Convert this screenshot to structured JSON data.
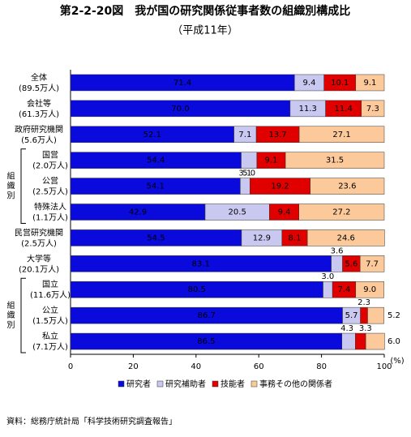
{
  "chart_data": {
    "type": "stacked-bar-horizontal",
    "title": "第2-2-20図　我が国の研究関係従事者数の組織別構成比",
    "subtitle": "（平成11年）",
    "categories": [
      "全体",
      "会社等",
      "政府研究機関",
      "国営",
      "公営",
      "特殊法人",
      "民営研究機関",
      "大学等",
      "国立",
      "公立",
      "私立"
    ],
    "category_counts": [
      "(89.5万人)",
      "(61.3万人)",
      "(5.6万人)",
      "(2.0万人)",
      "(2.5万人)",
      "(1.1万人)",
      "(2.5万人)",
      "(20.1万人)",
      "(11.6万人)",
      "(1.5万人)",
      "(7.1万人)"
    ],
    "groups": [
      {
        "label": "組織別",
        "rows": [
          3,
          5
        ]
      },
      {
        "label": "組織別",
        "rows": [
          8,
          10
        ]
      }
    ],
    "series": [
      {
        "name": "研究者",
        "color": "#0a0adc",
        "values": [
          71.4,
          70.0,
          52.1,
          54.4,
          54.1,
          42.9,
          54.5,
          83.1,
          80.5,
          86.7,
          86.5
        ],
        "value_labels": [
          "71.4",
          "70.0",
          "52.1",
          "54.4",
          "54.1",
          "42.9",
          "54.5",
          "83.1",
          "80.5",
          "86.7",
          "86.5"
        ]
      },
      {
        "name": "研究補助者",
        "color": "#c8c8f0",
        "values": [
          9.4,
          11.3,
          7.1,
          5.0,
          3.1,
          20.5,
          12.9,
          3.6,
          3.0,
          5.7,
          4.3
        ],
        "value_labels": [
          "9.4",
          "11.3",
          "7.1",
          "5.0",
          "3.1",
          "20.5",
          "12.9",
          "3.6",
          "3.0",
          "5.7",
          "4.3"
        ]
      },
      {
        "name": "技能者",
        "color": "#e00000",
        "values": [
          10.1,
          11.4,
          13.7,
          9.1,
          19.2,
          9.4,
          8.1,
          5.6,
          7.4,
          2.3,
          3.3
        ],
        "value_labels": [
          "10.1",
          "11.4",
          "13.7",
          "9.1",
          "19.2",
          "9.4",
          "8.1",
          "5.6",
          "7.4",
          "2.3",
          "3.3"
        ]
      },
      {
        "name": "事務その他の関係者",
        "color": "#fcc99b",
        "values": [
          9.1,
          7.3,
          27.1,
          31.5,
          23.6,
          27.2,
          24.6,
          7.7,
          9.0,
          5.2,
          6.0
        ],
        "value_labels": [
          "9.1",
          "7.3",
          "27.1",
          "31.5",
          "23.6",
          "27.2",
          "24.6",
          "7.7",
          "9.0",
          "5.2",
          "6.0"
        ]
      }
    ],
    "xlim": [
      0,
      100
    ],
    "xticks": [
      0,
      20,
      40,
      60,
      80,
      100
    ],
    "x_unit": "(%)",
    "source": "資料：総務庁統計局「科学技術研究調査報告」"
  }
}
